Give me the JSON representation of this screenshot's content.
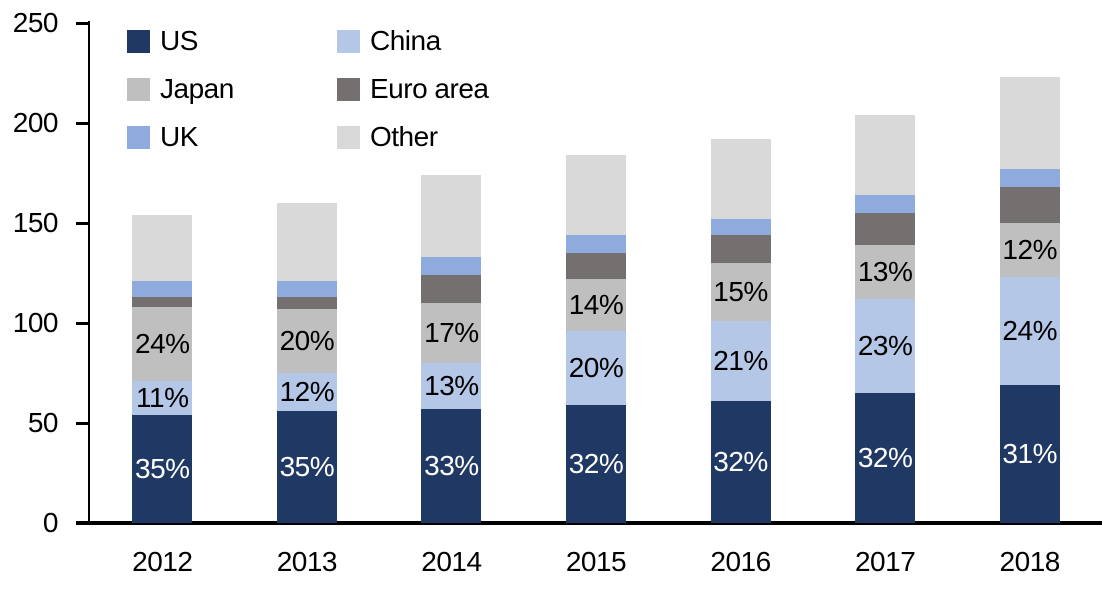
{
  "chart_data": {
    "type": "bar",
    "stacked": true,
    "title": "",
    "xlabel": "",
    "ylabel": "",
    "grid": false,
    "categories": [
      "2012",
      "2013",
      "2014",
      "2015",
      "2016",
      "2017",
      "2018"
    ],
    "series": [
      {
        "name": "US",
        "color": "#1F3864",
        "values": [
          54,
          56,
          57,
          59,
          61,
          65,
          69
        ],
        "labels": [
          "35%",
          "35%",
          "33%",
          "32%",
          "32%",
          "32%",
          "31%"
        ],
        "label_color": "#FFFFFF"
      },
      {
        "name": "China",
        "color": "#B4C7E7",
        "values": [
          17,
          19,
          23,
          37,
          40,
          47,
          54
        ],
        "labels": [
          "11%",
          "12%",
          "13%",
          "20%",
          "21%",
          "23%",
          "24%"
        ],
        "label_color": "#000000"
      },
      {
        "name": "Japan",
        "color": "#BFBFBF",
        "values": [
          37,
          32,
          30,
          26,
          29,
          27,
          27
        ],
        "labels": [
          "24%",
          "20%",
          "17%",
          "14%",
          "15%",
          "13%",
          "12%"
        ],
        "label_color": "#000000"
      },
      {
        "name": "Euro area",
        "color": "#757070",
        "values": [
          5,
          6,
          14,
          13,
          14,
          16,
          18
        ],
        "labels": null,
        "label_color": null
      },
      {
        "name": "UK",
        "color": "#8FAADC",
        "values": [
          8,
          8,
          9,
          9,
          8,
          9,
          9
        ],
        "labels": null,
        "label_color": null
      },
      {
        "name": "Other",
        "color": "#D9D9D9",
        "values": [
          33,
          39,
          41,
          40,
          40,
          40,
          46
        ],
        "labels": null,
        "label_color": null
      }
    ],
    "totals": [
      154,
      160,
      174,
      184,
      192,
      204,
      223
    ],
    "y_axis": {
      "min": 0,
      "max": 250,
      "step": 50,
      "tick_values": [
        0,
        50,
        100,
        150,
        200,
        250
      ],
      "tick_labels": [
        "0",
        "50",
        "100",
        "150",
        "200",
        "250"
      ]
    },
    "legend": {
      "position": "top-left",
      "columns": 2,
      "order": [
        "US",
        "China",
        "Japan",
        "Euro area",
        "UK",
        "Other"
      ]
    },
    "axis_color": "#000000",
    "background_color": "#FFFFFF"
  }
}
